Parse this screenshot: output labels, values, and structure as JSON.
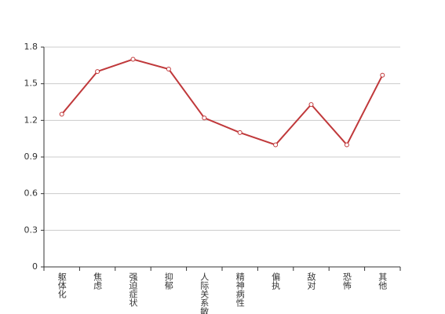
{
  "chart_data": {
    "type": "line",
    "categories": [
      "躯体化",
      "焦虑",
      "强迫症状",
      "抑郁",
      "人际关系敏感",
      "精神病性",
      "偏执",
      "敌对",
      "恐怖",
      "其他"
    ],
    "series": [
      {
        "color": "#c0393b",
        "values": [
          1.25,
          1.6,
          1.7,
          1.62,
          1.22,
          1.1,
          1.0,
          1.33,
          1.0,
          1.57
        ]
      }
    ],
    "ylim": [
      0,
      1.8
    ],
    "yticks": [
      0,
      0.3,
      0.6,
      0.9,
      1.2,
      1.5,
      1.8
    ],
    "grid": true
  }
}
